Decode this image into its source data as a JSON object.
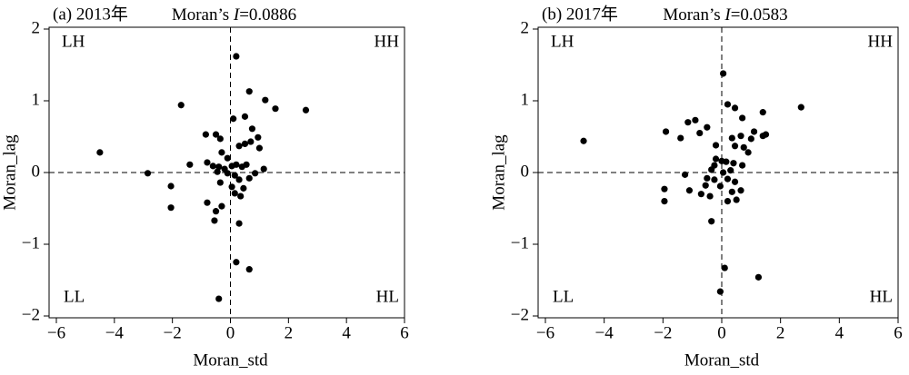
{
  "chart_data": [
    {
      "type": "scatter",
      "panel_label": "(a) 2013年",
      "stat_label": {
        "prefix": "Moran’s ",
        "symbol": "I",
        "value_text": "=0.0886"
      },
      "quadrant_labels": {
        "top_left": "LH",
        "top_right": "HH",
        "bottom_left": "LL",
        "bottom_right": "HL"
      },
      "x_label": "Moran_std",
      "y_label": "Moran_lag",
      "color": "#000000",
      "x": [
        0.2,
        -1.7,
        0.65,
        1.2,
        1.55,
        2.6,
        -4.5,
        -2.85,
        -2.05,
        -2.05,
        -0.85,
        -0.5,
        -0.35,
        0.1,
        0.5,
        0.75,
        0.95,
        0.5,
        0.3,
        0.7,
        1.0,
        -0.3,
        -0.1,
        -1.4,
        -0.8,
        -0.6,
        -0.4,
        -0.2,
        0.05,
        0.2,
        0.4,
        0.55,
        1.15,
        -0.45,
        -0.1,
        0.15,
        0.3,
        0.65,
        0.85,
        -0.35,
        0.05,
        0.45,
        0.15,
        0.35,
        -0.8,
        -0.5,
        -0.55,
        -0.3,
        0.3,
        0.2,
        0.65,
        -0.4
      ],
      "y": [
        1.62,
        0.94,
        1.13,
        1.01,
        0.89,
        0.87,
        0.28,
        -0.01,
        -0.19,
        -0.49,
        0.53,
        0.53,
        0.47,
        0.75,
        0.78,
        0.61,
        0.49,
        0.4,
        0.37,
        0.43,
        0.34,
        0.28,
        0.2,
        0.11,
        0.14,
        0.09,
        0.08,
        0.05,
        0.09,
        0.11,
        0.08,
        0.11,
        0.05,
        0.01,
        -0.01,
        -0.04,
        -0.1,
        -0.08,
        -0.01,
        -0.14,
        -0.2,
        -0.22,
        -0.29,
        -0.33,
        -0.42,
        -0.54,
        -0.67,
        -0.47,
        -0.71,
        -1.25,
        -1.35,
        -1.76
      ],
      "xlim": [
        -6,
        6
      ],
      "ylim": [
        -2,
        2
      ],
      "xticks": [
        {
          "value": -6,
          "label": "−6"
        },
        {
          "value": -4,
          "label": "−4"
        },
        {
          "value": -2,
          "label": "−2"
        },
        0,
        2,
        4,
        6
      ],
      "yticks": [
        {
          "value": -2,
          "label": "−2"
        },
        {
          "value": -1,
          "label": "−1"
        },
        0,
        1,
        2
      ]
    },
    {
      "type": "scatter",
      "panel_label": "(b) 2017年",
      "stat_label": {
        "prefix": "Moran’s ",
        "symbol": "I",
        "value_text": "=0.0583"
      },
      "quadrant_labels": {
        "top_left": "LH",
        "top_right": "HH",
        "bottom_left": "LL",
        "bottom_right": "HL"
      },
      "x_label": "Moran_std",
      "y_label": "Moran_lag",
      "color": "#000000",
      "x": [
        0.05,
        2.7,
        -4.7,
        -1.9,
        -1.4,
        -1.15,
        -0.9,
        -0.75,
        -0.5,
        0.2,
        0.45,
        0.7,
        1.4,
        1.4,
        1.5,
        1.1,
        0.65,
        0.35,
        1.0,
        -0.2,
        0.45,
        0.75,
        0.9,
        -0.2,
        0,
        0.15,
        0.4,
        0.7,
        -0.25,
        -0.35,
        0.05,
        0.3,
        -0.5,
        -0.25,
        0.2,
        0.45,
        -1.95,
        -1.95,
        -1.25,
        -1.1,
        -0.7,
        -0.4,
        -0.55,
        -0.05,
        0.35,
        0.65,
        0.2,
        0.5,
        -0.35,
        0.1,
        1.25,
        -0.05
      ],
      "y": [
        1.38,
        0.91,
        0.44,
        0.57,
        0.48,
        0.7,
        0.73,
        0.55,
        0.63,
        0.95,
        0.9,
        0.76,
        0.84,
        0.51,
        0.53,
        0.57,
        0.51,
        0.48,
        0.47,
        0.38,
        0.37,
        0.35,
        0.28,
        0.19,
        0.16,
        0.15,
        0.13,
        0.1,
        0.1,
        0.04,
        0,
        0.03,
        -0.08,
        -0.1,
        -0.09,
        -0.13,
        -0.23,
        -0.4,
        -0.03,
        -0.25,
        -0.3,
        -0.33,
        -0.18,
        -0.19,
        -0.27,
        -0.25,
        -0.4,
        -0.38,
        -0.68,
        -1.33,
        -1.46,
        -1.66
      ],
      "xlim": [
        -6,
        6
      ],
      "ylim": [
        -2,
        2
      ],
      "xticks": [
        {
          "value": -6,
          "label": "−6"
        },
        {
          "value": -4,
          "label": "−4"
        },
        {
          "value": -2,
          "label": "−2"
        },
        0,
        2,
        4,
        6
      ],
      "yticks": [
        {
          "value": -2,
          "label": "−2"
        },
        {
          "value": -1,
          "label": "−1"
        },
        0,
        1,
        2
      ]
    }
  ]
}
